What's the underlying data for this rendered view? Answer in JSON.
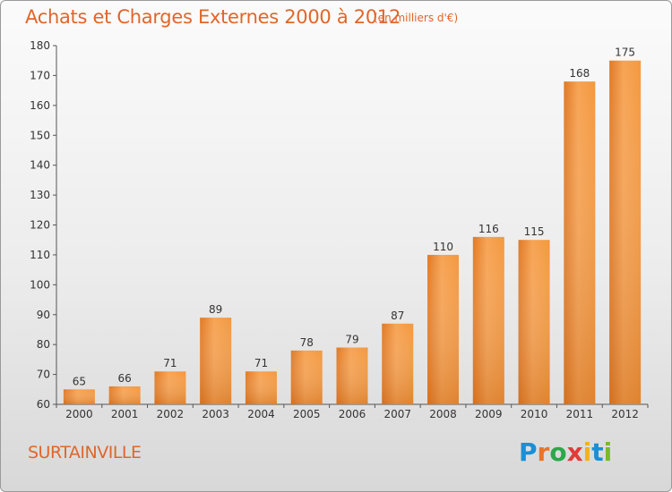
{
  "header": {
    "title": "Achats et Charges Externes 2000 à 2012",
    "unit": "(en milliers d'€)"
  },
  "footer": {
    "commune": "SURTAINVILLE",
    "logo_letters": [
      "P",
      "r",
      "o",
      "x",
      "i",
      "t",
      "i"
    ],
    "logo_colors": [
      "#1a8fd6",
      "#e8742b",
      "#2aa84a",
      "#e23a3a",
      "#f0b21e",
      "#1a8fd6",
      "#7cb929"
    ]
  },
  "colors": {
    "bar_light": "#f7a455",
    "bar_dark": "#d9711e",
    "text": "#333333",
    "accent": "#e0662a"
  },
  "chart_data": {
    "type": "bar",
    "categories": [
      "2000",
      "2001",
      "2002",
      "2003",
      "2004",
      "2005",
      "2006",
      "2007",
      "2008",
      "2009",
      "2010",
      "2011",
      "2012"
    ],
    "values": [
      65,
      66,
      71,
      89,
      71,
      78,
      79,
      87,
      110,
      116,
      115,
      168,
      175
    ],
    "ylim": [
      60,
      180
    ],
    "yticks": [
      60,
      70,
      80,
      90,
      100,
      110,
      120,
      130,
      140,
      150,
      160,
      170,
      180
    ],
    "grid": false
  }
}
